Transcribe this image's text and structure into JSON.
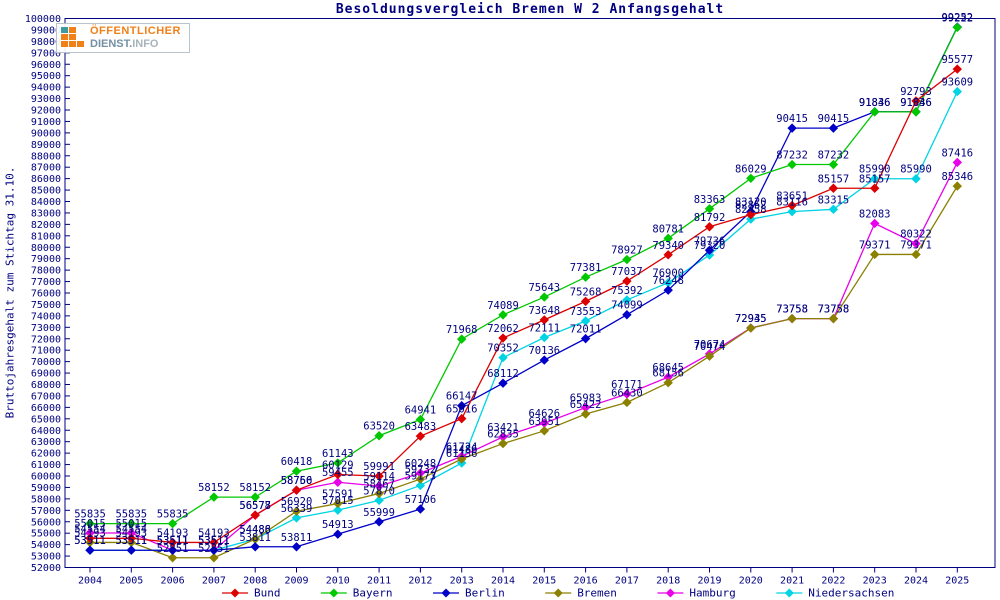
{
  "title": "Besoldungsvergleich Bremen W 2 Anfangsgehalt",
  "y_axis_title": "Bruttojahresgehalt zum Stichtag 31.10.",
  "logo": {
    "line1": "ÖFFENTLICHER",
    "line2a": "DIENST.",
    "line2b": "INFO"
  },
  "colors": {
    "text": "#000080",
    "frame": "#000080",
    "value_label": "#000080",
    "background": "#ffffff"
  },
  "chart_data": {
    "type": "line",
    "x": [
      2004,
      2005,
      2006,
      2007,
      2008,
      2009,
      2010,
      2011,
      2012,
      2013,
      2014,
      2015,
      2016,
      2017,
      2018,
      2019,
      2020,
      2021,
      2022,
      2023,
      2024,
      2025
    ],
    "ylim": [
      52000,
      100000
    ],
    "ytick_step": 1000,
    "grid": false,
    "marker": "diamond",
    "value_labels": true,
    "legend_position": "bottom",
    "series": [
      {
        "name": "Bund",
        "color": "#dc0000",
        "values": [
          54554,
          54554,
          54193,
          54193,
          56577,
          58760,
          60129,
          59991,
          63483,
          65016,
          72062,
          73648,
          75268,
          77037,
          79340,
          81792,
          82852,
          83651,
          85157,
          85157,
          92793,
          95577
        ]
      },
      {
        "name": "Bayern",
        "color": "#00c800",
        "values": [
          55835,
          55835,
          55835,
          58152,
          58152,
          60418,
          61143,
          63520,
          64941,
          71968,
          74089,
          75643,
          77381,
          78927,
          80781,
          83363,
          86029,
          87232,
          87232,
          91836,
          91836,
          99222
        ]
      },
      {
        "name": "Berlin",
        "color": "#0000c8",
        "values": [
          53511,
          53511,
          53511,
          53511,
          53811,
          53811,
          54913,
          55999,
          57106,
          66147,
          68112,
          70136,
          72011,
          74099,
          76248,
          79736,
          83120,
          90415,
          90415,
          91846,
          91846,
          99252
        ]
      },
      {
        "name": "Bremen",
        "color": "#8b8000",
        "values": [
          54193,
          54193,
          52851,
          52851,
          54486,
          56920,
          57591,
          58467,
          59732,
          61486,
          62835,
          63951,
          65422,
          66430,
          68156,
          70474,
          72935,
          73758,
          73758,
          79371,
          79371,
          85346
        ]
      },
      {
        "name": "Hamburg",
        "color": "#e800e8",
        "values": [
          55015,
          55015,
          53511,
          53511,
          56578,
          58756,
          59455,
          59114,
          60248,
          61724,
          63421,
          64626,
          65983,
          67171,
          68645,
          70674,
          72945,
          73758,
          73758,
          82083,
          80322,
          87416
        ]
      },
      {
        "name": "Niedersachsen",
        "color": "#00d4e4",
        "values": [
          53511,
          53511,
          53511,
          53511,
          54488,
          56339,
          57015,
          57870,
          59173,
          61136,
          70352,
          72111,
          73553,
          75392,
          76900,
          79320,
          82458,
          83116,
          83315,
          85990,
          85990,
          93609
        ]
      }
    ]
  }
}
